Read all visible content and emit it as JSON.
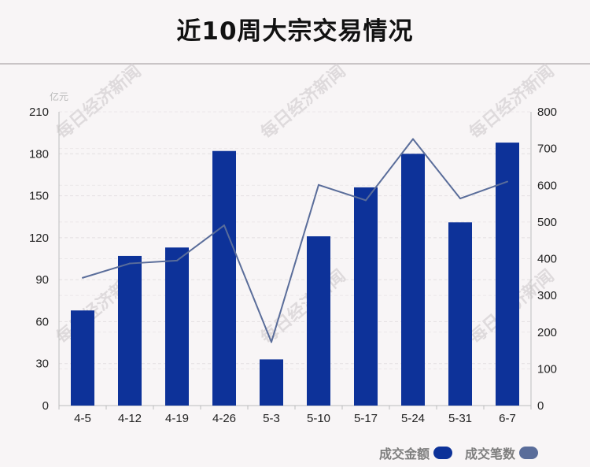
{
  "chart_data": {
    "type": "bar",
    "title": "近10周大宗交易情况",
    "y_unit": "亿元",
    "categories": [
      "4-5",
      "4-12",
      "4-19",
      "4-26",
      "5-3",
      "5-10",
      "5-17",
      "5-24",
      "5-31",
      "6-7"
    ],
    "series": [
      {
        "name": "成交金额",
        "type": "bar",
        "axis": "left",
        "color": "#0d3299",
        "values": [
          68,
          107,
          113,
          182,
          33,
          121,
          156,
          180,
          131,
          188
        ]
      },
      {
        "name": "成交笔数",
        "type": "line",
        "axis": "right",
        "color": "#5a6d9a",
        "values": [
          348,
          387,
          395,
          491,
          173,
          601,
          559,
          726,
          564,
          610
        ]
      }
    ],
    "left_axis": {
      "ylim": [
        0,
        210
      ],
      "ticks": [
        0,
        30,
        60,
        90,
        120,
        150,
        180,
        210
      ]
    },
    "right_axis": {
      "ylim": [
        0,
        800
      ],
      "ticks": [
        0,
        100,
        200,
        300,
        400,
        500,
        600,
        700,
        800
      ]
    },
    "grid": true,
    "legend_position": "bottom-right",
    "watermark": "每日经济新闻"
  }
}
